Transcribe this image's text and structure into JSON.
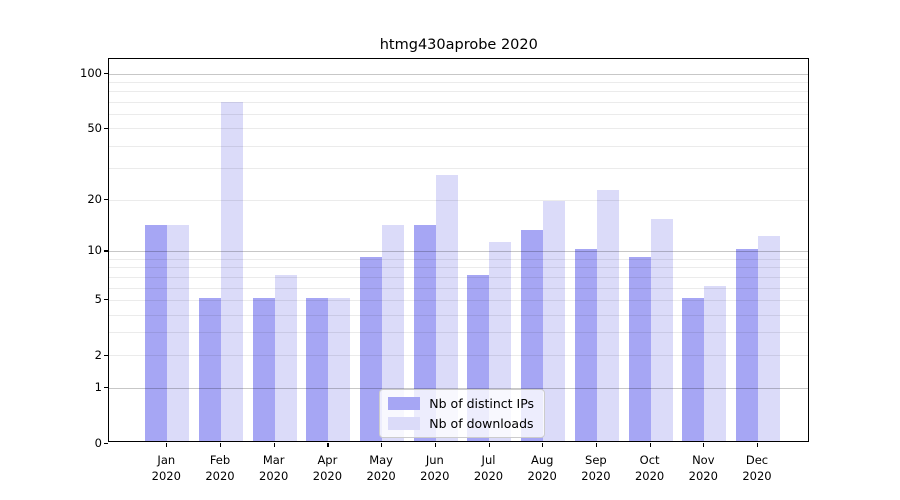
{
  "chart_data": {
    "type": "bar",
    "title": "htmg430aprobe 2020",
    "categories": [
      "Jan",
      "Feb",
      "Mar",
      "Apr",
      "May",
      "Jun",
      "Jul",
      "Aug",
      "Sep",
      "Oct",
      "Nov",
      "Dec"
    ],
    "category_year": "2020",
    "series": [
      {
        "name": "Nb of distinct IPs",
        "color": "#a6a6f4",
        "values": [
          14,
          5,
          5,
          5,
          9,
          14,
          7,
          13,
          10,
          9,
          5,
          10
        ]
      },
      {
        "name": "Nb of downloads",
        "color": "#dbdbf9",
        "values": [
          14,
          68,
          7,
          5,
          14,
          27,
          11,
          19,
          22,
          15,
          6,
          12
        ]
      }
    ],
    "xlabel": "",
    "ylabel": "",
    "yscale": "log1p",
    "ylim": [
      0,
      120
    ],
    "yticks": [
      0,
      1,
      2,
      5,
      10,
      20,
      50,
      100
    ],
    "major_gridlines": [
      1,
      10,
      100
    ],
    "minor_gridlines": [
      2,
      3,
      4,
      5,
      6,
      7,
      8,
      9,
      20,
      30,
      40,
      50,
      60,
      70,
      80,
      90
    ],
    "grid": "horizontal, drawn over bars",
    "legend_position": "lower center"
  }
}
